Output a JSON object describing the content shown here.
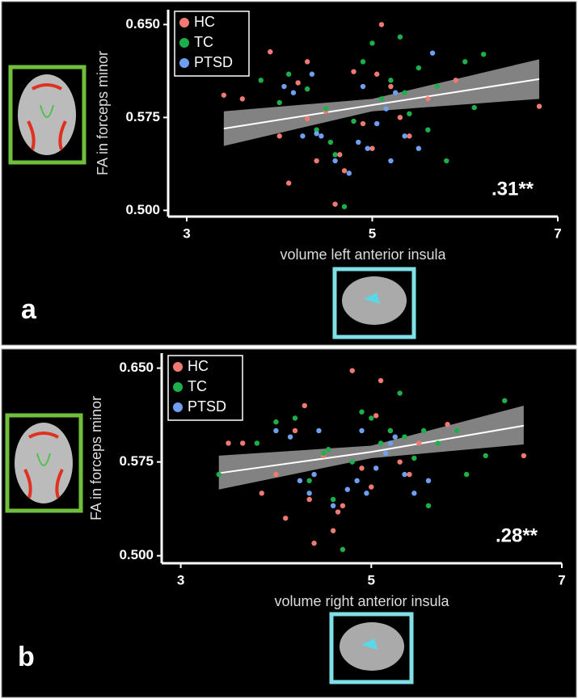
{
  "chart_data": [
    {
      "type": "scatter",
      "panel_label": "a",
      "xlabel": "volume left anterior insula",
      "ylabel": "FA in forceps minor",
      "annotation": ".31**",
      "xlim": [
        2.8,
        7.0
      ],
      "xticks": [
        3,
        5,
        7
      ],
      "ylim": [
        0.495,
        0.662
      ],
      "yticks": [
        {
          "value": 0.5,
          "label": "0.500"
        },
        0.575,
        {
          "value": 0.65,
          "label": "0.650"
        }
      ],
      "legend": "upper left",
      "series": [
        {
          "name": "HC",
          "color": "#f07a72",
          "x": [
            3.4,
            3.6,
            3.9,
            4.0,
            4.1,
            4.2,
            4.3,
            4.4,
            4.5,
            4.6,
            4.7,
            4.8,
            4.9,
            5.0,
            5.1,
            5.2,
            5.3,
            5.4,
            5.6,
            5.9,
            6.8,
            4.3,
            4.65,
            5.05
          ],
          "values": [
            0.593,
            0.59,
            0.628,
            0.56,
            0.522,
            0.603,
            0.62,
            0.54,
            0.58,
            0.505,
            0.532,
            0.612,
            0.57,
            0.55,
            0.65,
            0.6,
            0.575,
            0.56,
            0.59,
            0.605,
            0.584,
            0.574,
            0.545,
            0.61
          ]
        },
        {
          "name": "TC",
          "color": "#1db04a",
          "x": [
            3.8,
            4.0,
            4.1,
            4.3,
            4.4,
            4.5,
            4.6,
            4.7,
            4.8,
            4.9,
            5.0,
            5.1,
            5.2,
            5.3,
            5.4,
            5.5,
            5.6,
            5.7,
            5.8,
            6.0,
            6.1,
            6.2,
            4.55,
            5.35
          ],
          "values": [
            0.605,
            0.587,
            0.61,
            0.598,
            0.565,
            0.582,
            0.545,
            0.503,
            0.572,
            0.62,
            0.635,
            0.59,
            0.605,
            0.64,
            0.578,
            0.615,
            0.565,
            0.6,
            0.54,
            0.62,
            0.583,
            0.626,
            0.555,
            0.595
          ]
        },
        {
          "name": "PTSD",
          "color": "#6f9ff0",
          "x": [
            4.05,
            4.15,
            4.25,
            4.35,
            4.45,
            4.6,
            4.75,
            4.85,
            4.95,
            5.05,
            5.15,
            5.25,
            5.35,
            5.5,
            5.65,
            4.9,
            4.4,
            5.2
          ],
          "values": [
            0.6,
            0.595,
            0.56,
            0.61,
            0.56,
            0.54,
            0.53,
            0.555,
            0.55,
            0.57,
            0.582,
            0.595,
            0.56,
            0.55,
            0.627,
            0.6,
            0.562,
            0.54
          ]
        }
      ],
      "fit": {
        "x": [
          3.4,
          5.0,
          6.8
        ],
        "y": [
          0.566,
          0.585,
          0.606
        ],
        "lower": [
          0.552,
          0.58,
          0.59
        ],
        "upper": [
          0.58,
          0.59,
          0.622
        ]
      }
    },
    {
      "type": "scatter",
      "panel_label": "b",
      "xlabel": "volume right anterior insula",
      "ylabel": "FA in forceps minor",
      "annotation": ".28**",
      "xlim": [
        2.8,
        7.0
      ],
      "xticks": [
        3,
        5,
        7
      ],
      "ylim": [
        0.494,
        0.662
      ],
      "yticks": [
        {
          "value": 0.5,
          "label": "0.500"
        },
        0.575,
        {
          "value": 0.65,
          "label": "0.650"
        }
      ],
      "legend": "upper left",
      "series": [
        {
          "name": "HC",
          "color": "#f07a72",
          "x": [
            3.5,
            3.65,
            3.85,
            4.0,
            4.1,
            4.2,
            4.3,
            4.4,
            4.5,
            4.6,
            4.7,
            4.8,
            4.9,
            5.0,
            5.1,
            5.2,
            5.3,
            5.4,
            5.5,
            5.8,
            6.6,
            4.35,
            4.65,
            5.05
          ],
          "values": [
            0.59,
            0.59,
            0.55,
            0.565,
            0.53,
            0.6,
            0.62,
            0.51,
            0.58,
            0.52,
            0.54,
            0.648,
            0.57,
            0.555,
            0.64,
            0.6,
            0.575,
            0.565,
            0.59,
            0.605,
            0.58,
            0.545,
            0.535,
            0.612
          ]
        },
        {
          "name": "TC",
          "color": "#1db04a",
          "x": [
            3.4,
            3.8,
            4.0,
            4.2,
            4.35,
            4.5,
            4.6,
            4.7,
            4.8,
            4.9,
            5.0,
            5.1,
            5.2,
            5.3,
            5.45,
            5.55,
            5.6,
            5.7,
            5.9,
            6.0,
            6.2,
            6.4,
            4.55,
            5.35
          ],
          "values": [
            0.565,
            0.59,
            0.607,
            0.61,
            0.56,
            0.582,
            0.545,
            0.505,
            0.575,
            0.615,
            0.61,
            0.59,
            0.6,
            0.63,
            0.578,
            0.6,
            0.54,
            0.59,
            0.6,
            0.565,
            0.58,
            0.624,
            0.585,
            0.595
          ]
        },
        {
          "name": "PTSD",
          "color": "#6f9ff0",
          "x": [
            4.0,
            4.15,
            4.25,
            4.35,
            4.45,
            4.6,
            4.75,
            4.85,
            4.95,
            5.05,
            5.15,
            5.25,
            5.35,
            5.45,
            5.6,
            4.9,
            4.4,
            5.2
          ],
          "values": [
            0.6,
            0.595,
            0.56,
            0.55,
            0.6,
            0.54,
            0.553,
            0.56,
            0.55,
            0.57,
            0.582,
            0.595,
            0.565,
            0.55,
            0.56,
            0.6,
            0.565,
            0.59
          ]
        }
      ],
      "fit": {
        "x": [
          3.4,
          5.0,
          6.6
        ],
        "y": [
          0.566,
          0.583,
          0.604
        ],
        "lower": [
          0.553,
          0.578,
          0.589
        ],
        "upper": [
          0.58,
          0.588,
          0.62
        ]
      }
    }
  ]
}
